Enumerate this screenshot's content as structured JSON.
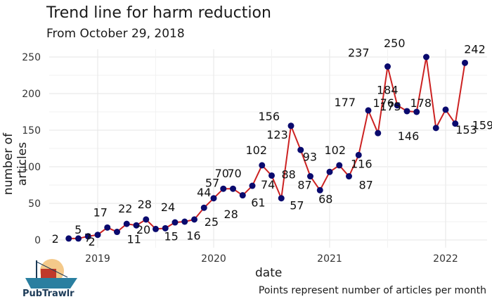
{
  "chart_data": {
    "type": "line",
    "title": "Trend line for harm reduction",
    "subtitle": "From October 29, 2018",
    "xlabel": "date",
    "ylabel": "number of articles",
    "caption": "Points represent number of articles per month",
    "ylim": [
      0,
      260
    ],
    "yticks": [
      0,
      50,
      100,
      150,
      200,
      250
    ],
    "xticks": [
      "2019",
      "2020",
      "2021",
      "2022"
    ],
    "grid": true,
    "legend": "none",
    "colors": {
      "line": "#cc2222",
      "point": "#0a0a6e"
    },
    "series": [
      {
        "x": [
          "2018-10",
          "2018-11",
          "2018-12",
          "2019-01",
          "2019-02",
          "2019-03",
          "2019-04",
          "2019-05",
          "2019-06",
          "2019-07",
          "2019-08",
          "2019-09",
          "2019-10",
          "2019-11",
          "2019-12",
          "2020-01",
          "2020-02",
          "2020-03",
          "2020-04",
          "2020-05",
          "2020-06",
          "2020-07",
          "2020-08",
          "2020-09",
          "2020-10",
          "2020-11",
          "2020-12",
          "2021-01",
          "2021-02",
          "2021-03",
          "2021-04",
          "2021-05",
          "2021-06",
          "2021-07",
          "2021-08",
          "2021-09",
          "2021-10",
          "2021-11",
          "2021-12",
          "2022-01",
          "2022-02",
          "2022-03"
        ],
        "values": [
          2,
          2,
          5,
          7,
          17,
          11,
          22,
          20,
          28,
          15,
          16,
          24,
          25,
          28,
          44,
          57,
          70,
          70,
          61,
          74,
          102,
          88,
          57,
          156,
          123,
          87,
          68,
          93,
          102,
          87,
          116,
          177,
          146,
          237,
          184,
          176,
          175,
          250,
          153,
          178,
          159,
          242
        ]
      }
    ],
    "point_labels": [
      "2",
      "2",
      "5",
      "7",
      "17",
      "11",
      "22",
      "20",
      "28",
      "15",
      "16",
      "24",
      "25",
      "28",
      "44",
      "57",
      "70",
      "70",
      "61",
      "74",
      "102",
      "88",
      "57",
      "156",
      "123",
      "87",
      "68",
      "93",
      "102",
      "87",
      "116",
      "177",
      "146",
      "237",
      "184",
      "176",
      "175",
      "250",
      "153",
      "178",
      "159",
      "242"
    ]
  },
  "logo": {
    "text": "PubTrawlr"
  }
}
